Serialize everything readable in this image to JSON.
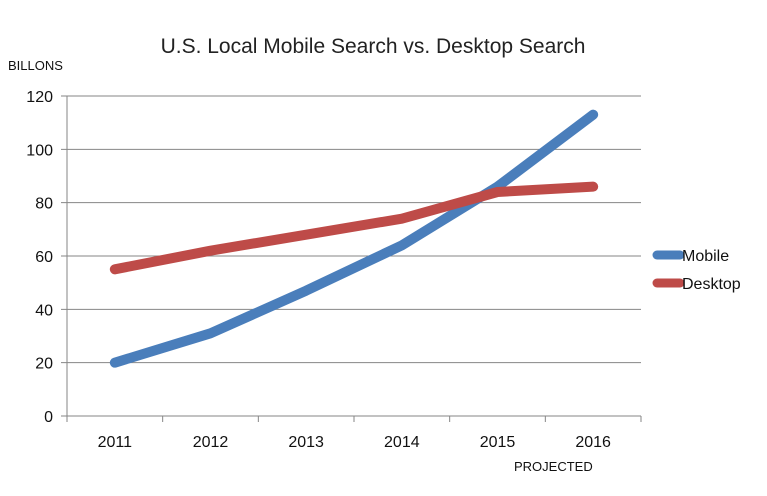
{
  "chart_data": {
    "type": "line",
    "title": "U.S. Local Mobile Search vs. Desktop Search",
    "ylabel": "BILLONS",
    "xlabel": "",
    "annotation": "PROJECTED",
    "categories": [
      "2011",
      "2012",
      "2013",
      "2014",
      "2015",
      "2016"
    ],
    "ylim": [
      0,
      120
    ],
    "yticks": [
      0,
      20,
      40,
      60,
      80,
      100,
      120
    ],
    "grid": true,
    "legend_position": "right",
    "series": [
      {
        "name": "Mobile",
        "color": "#4a7ebb",
        "values": [
          20,
          31,
          47,
          64,
          86,
          113
        ]
      },
      {
        "name": "Desktop",
        "color": "#be4b48",
        "values": [
          55,
          62,
          68,
          74,
          84,
          86
        ]
      }
    ]
  }
}
